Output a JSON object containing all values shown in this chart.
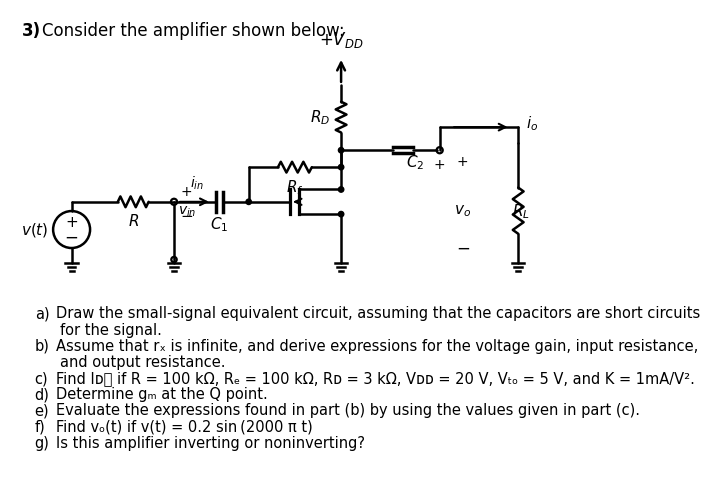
{
  "bg_color": "#ffffff",
  "title_num": "3)",
  "title_text": "Consider the amplifier shown below:",
  "vdd_label": "$+V_{DD}$",
  "RD_label": "$R_D$",
  "Rf_label": "$R_f$",
  "C1_label": "$C_1$",
  "C2_label": "$C_2$",
  "R_label": "$R$",
  "RL_label": "$R_L$",
  "iin_label": "$i_{in}$",
  "io_label": "$i_o$",
  "vin_label": "$v_{in}$",
  "vo_label": "$v_o$",
  "vt_label": "$v(t)$",
  "plus": "+",
  "minus": "−",
  "questions": [
    [
      "a)",
      "Draw the small-signal equivalent circuit, assuming that the capacitors are short circuits",
      "     for the signal."
    ],
    [
      "b)",
      "Assume that rₓ is infinite, and derive expressions for the voltage gain, input resistance,",
      "     and output resistance."
    ],
    [
      "c)",
      "Find Iᴅᴤ if R = 100 kΩ, Rₑ = 100 kΩ, Rᴅ = 3 kΩ, Vᴅᴅ = 20 V, Vₜₒ = 5 V, and K = 1mA/V².",
      null
    ],
    [
      "d)",
      "Determine gₘ at the Q point.",
      null
    ],
    [
      "e)",
      "Evaluate the expressions found in part (b) by using the values given in part (c).",
      null
    ],
    [
      "f)",
      "Find vₒ(t) if v(t) = 0.2 sin (2000 π t)",
      null
    ],
    [
      "g)",
      "Is this amplifier inverting or noninverting?",
      null
    ]
  ]
}
